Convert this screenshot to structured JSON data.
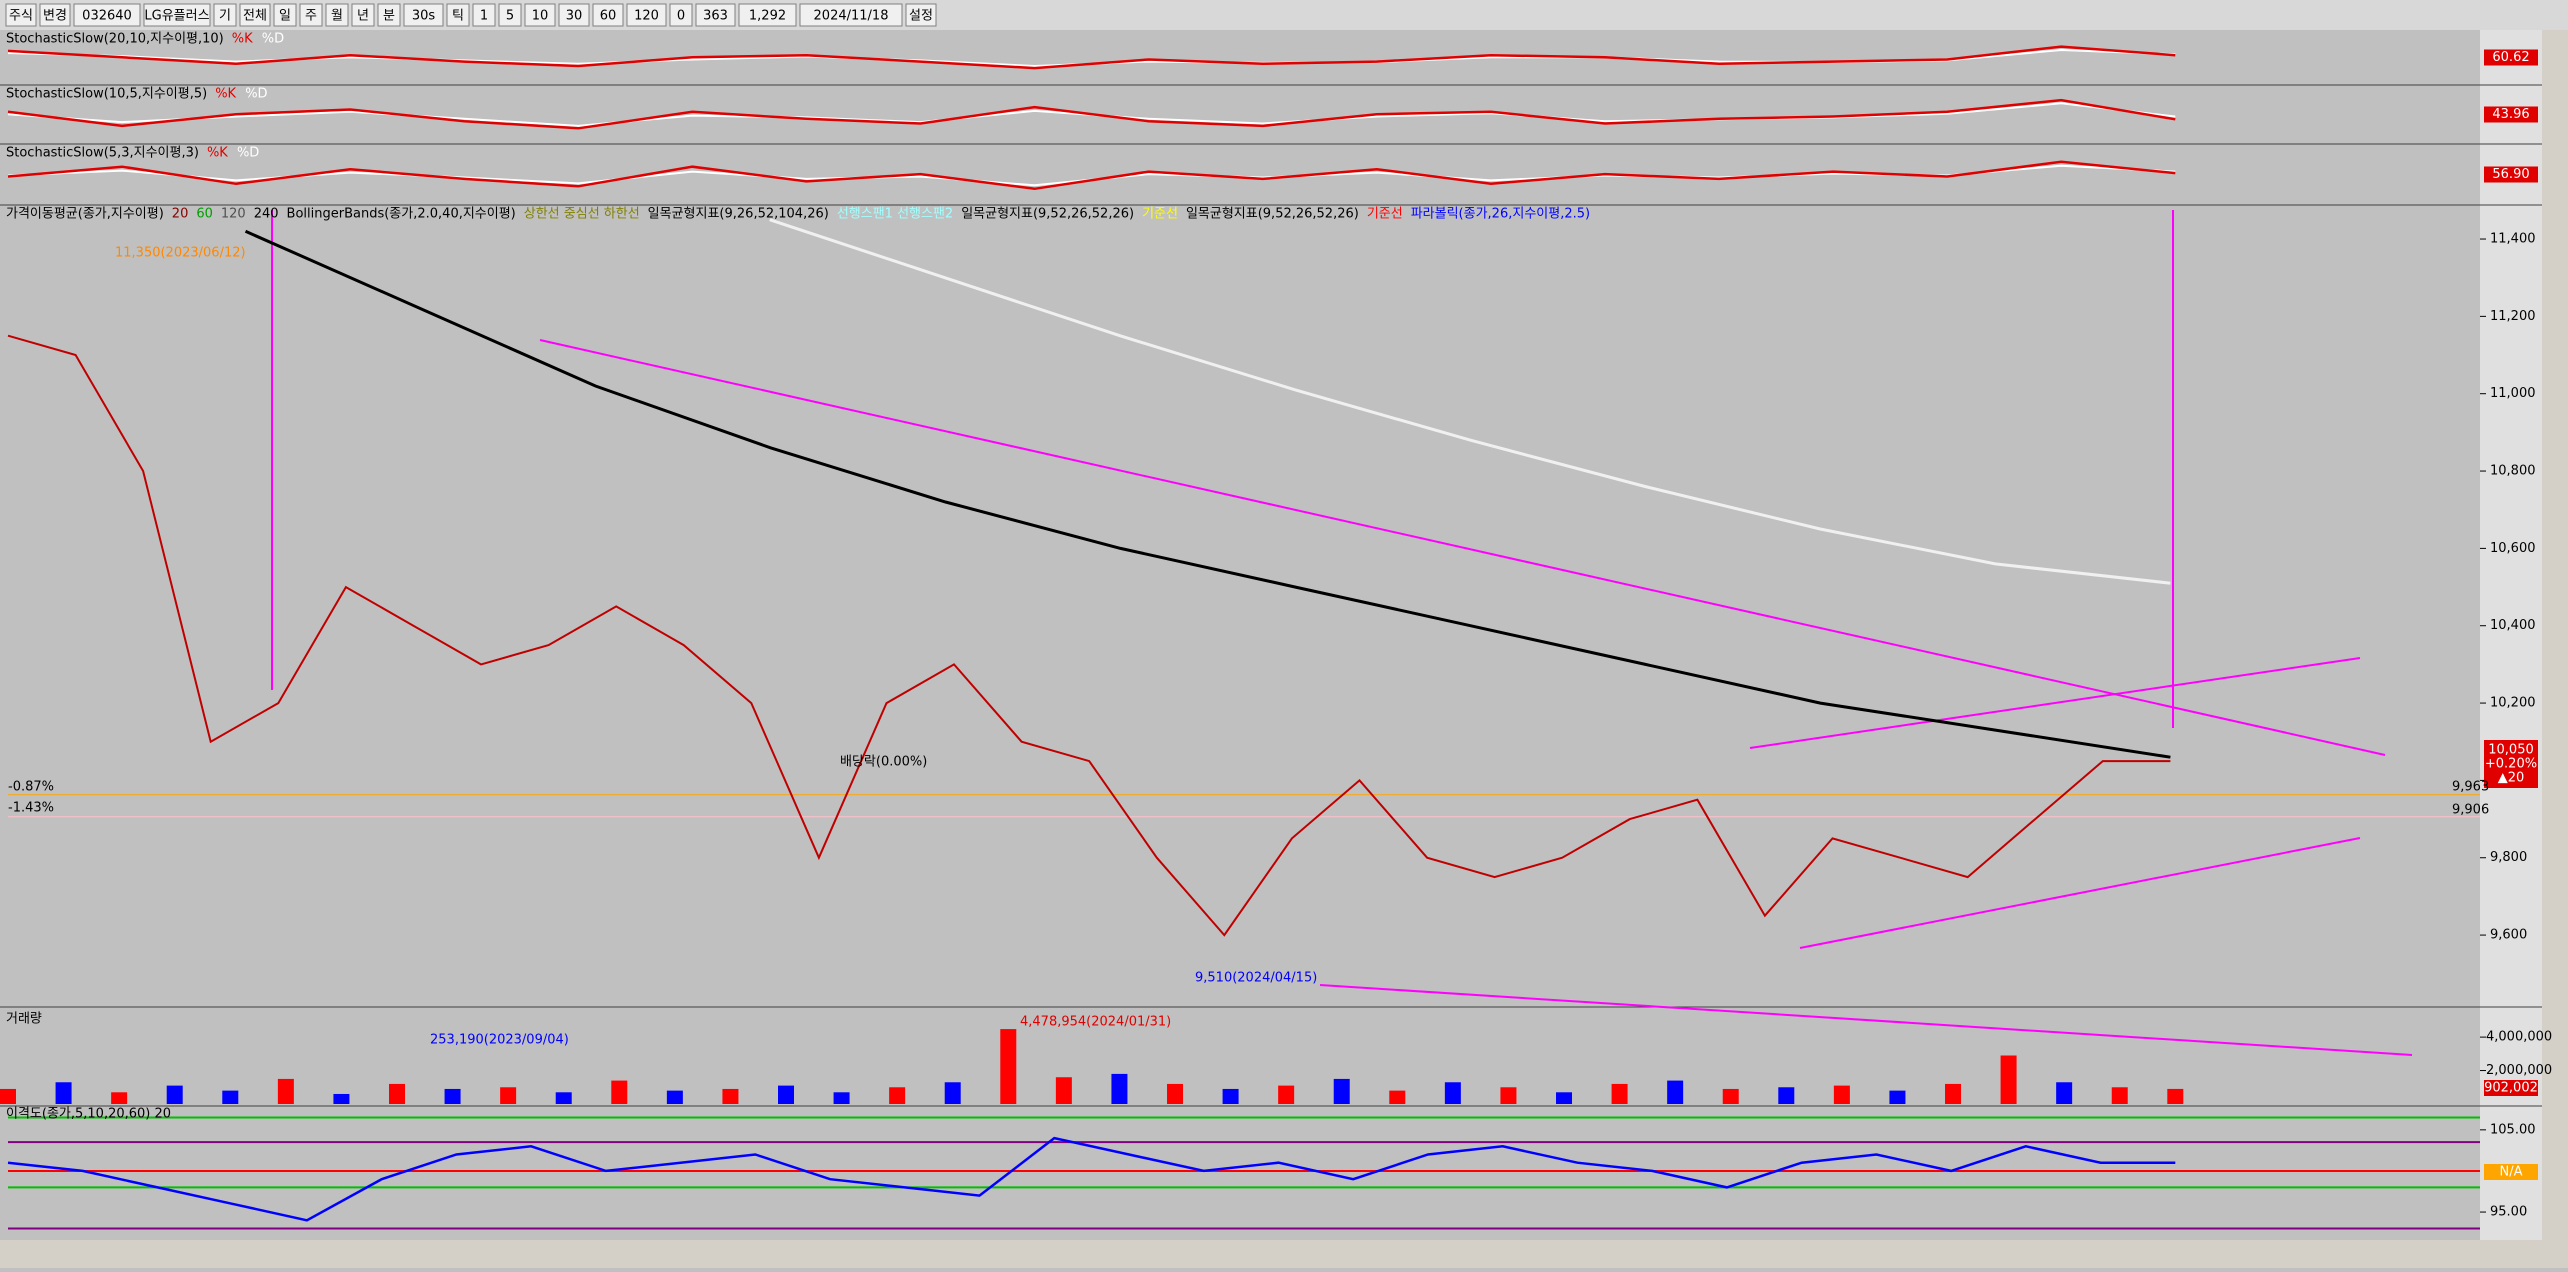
{
  "toolbar": {
    "items": [
      "주식",
      "변경",
      "032640",
      "LG유플러스",
      "기",
      "전체",
      "일",
      "주",
      "월",
      "년",
      "분",
      "30s",
      "틱",
      "1",
      "5",
      "10",
      "30",
      "60",
      "120",
      "0",
      "363",
      "1,292",
      "2024/11/18",
      "설정"
    ]
  },
  "stoch_panels": [
    {
      "label": "StochasticSlow(20,10,지수이평,10)",
      "k": "%K",
      "d": "%D",
      "value_label": "60.62",
      "ylim": [
        0,
        100
      ],
      "k_values": [
        70,
        55,
        40,
        60,
        45,
        35,
        55,
        60,
        45,
        30,
        50,
        40,
        45,
        60,
        55,
        40,
        45,
        50,
        80,
        60
      ],
      "d_values": [
        65,
        58,
        45,
        55,
        48,
        40,
        50,
        57,
        48,
        35,
        45,
        42,
        44,
        55,
        55,
        45,
        44,
        48,
        72,
        62
      ]
    },
    {
      "label": "StochasticSlow(10,5,지수이평,5)",
      "k": "%K",
      "d": "%D",
      "value_label": "43.96",
      "ylim": [
        0,
        100
      ],
      "k_values": [
        60,
        30,
        55,
        65,
        40,
        25,
        60,
        45,
        35,
        70,
        40,
        30,
        55,
        60,
        35,
        45,
        50,
        60,
        85,
        44
      ],
      "d_values": [
        55,
        38,
        50,
        60,
        45,
        30,
        52,
        48,
        38,
        62,
        45,
        35,
        50,
        57,
        40,
        44,
        48,
        56,
        78,
        50
      ]
    },
    {
      "label": "StochasticSlow(5,3,지수이평,3)",
      "k": "%K",
      "d": "%D",
      "value_label": "56.90",
      "ylim": [
        0,
        100
      ],
      "k_values": [
        50,
        70,
        35,
        65,
        45,
        30,
        70,
        40,
        55,
        25,
        60,
        45,
        65,
        35,
        55,
        45,
        60,
        50,
        80,
        57
      ],
      "d_values": [
        52,
        62,
        42,
        58,
        48,
        36,
        60,
        45,
        50,
        32,
        55,
        48,
        58,
        42,
        52,
        48,
        56,
        52,
        72,
        60
      ]
    }
  ],
  "main": {
    "legend": [
      {
        "text": "가격이동평균(종가,지수이평)",
        "color": "#000000"
      },
      {
        "text": "20",
        "color": "#8b0000"
      },
      {
        "text": "60",
        "color": "#00a000"
      },
      {
        "text": "120",
        "color": "#505050"
      },
      {
        "text": "240",
        "color": "#000000"
      },
      {
        "text": "BollingerBands(종가,2.0,40,지수이평)",
        "color": "#000000"
      },
      {
        "text": "상한선 중심선 하한선",
        "color": "#808000"
      },
      {
        "text": "일목균형지표(9,26,52,104,26)",
        "color": "#000000"
      },
      {
        "text": "선행스팬1 선행스팬2",
        "color": "#a0ffff"
      },
      {
        "text": "일목균형지표(9,52,26,52,26)",
        "color": "#000000"
      },
      {
        "text": "기준선",
        "color": "#ffff00"
      },
      {
        "text": "일목균형지표(9,52,26,52,26)",
        "color": "#000000"
      },
      {
        "text": "기준선",
        "color": "#ff0000"
      },
      {
        "text": "파라볼릭(종가,26,지수이평,2.5)",
        "color": "#0000ff"
      }
    ],
    "ylim": [
      9414,
      11488
    ],
    "yticks": [
      {
        "value": 9600,
        "label": "9,600"
      },
      {
        "value": 9800,
        "label": "9,800"
      },
      {
        "value": 10000,
        "label": "10,000"
      },
      {
        "value": 10200,
        "label": "10,200"
      },
      {
        "value": 10400,
        "label": "10,400"
      },
      {
        "value": 10600,
        "label": "10,600"
      },
      {
        "value": 10800,
        "label": "10,800"
      },
      {
        "value": 11000,
        "label": "11,000"
      },
      {
        "value": 11200,
        "label": "11,200"
      },
      {
        "value": 11400,
        "label": "11,400"
      }
    ],
    "close": [
      11150,
      11100,
      10800,
      10100,
      10200,
      10500,
      10400,
      10300,
      10350,
      10450,
      10350,
      10200,
      9800,
      10200,
      10300,
      10100,
      10050,
      9800,
      9600,
      9850,
      10000,
      9800,
      9750,
      9800,
      9900,
      9950,
      9650,
      9850,
      9800,
      9750,
      9900,
      10050,
      10050
    ],
    "ma240": [
      11420,
      11220,
      11020,
      10860,
      10720,
      10600,
      10500,
      10400,
      10300,
      10200,
      10130,
      10060
    ],
    "ma_white": [
      11450,
      11300,
      11150,
      11010,
      10880,
      10760,
      10650,
      10560,
      10510
    ],
    "annotations": [
      "11,350(2023/06/12)",
      "9,510(2024/04/15)",
      "배당락(0.00%)",
      "-0.87%",
      "-1.43%"
    ],
    "price_tag": [
      "10,050",
      "+0.20%",
      "▲20"
    ],
    "level_tags": [
      "9,963",
      "9,906"
    ]
  },
  "volume": {
    "label": "거래량",
    "ylim": [
      0,
      5800000
    ],
    "yticks": [
      {
        "value": 2000000,
        "label": "2,000,000"
      },
      {
        "value": 4000000,
        "label": "4,000,000"
      }
    ],
    "values": [
      900000,
      1300000,
      700000,
      1100000,
      800000,
      1500000,
      600000,
      1200000,
      900000,
      1000000,
      700000,
      1400000,
      800000,
      900000,
      1100000,
      700000,
      1000000,
      1300000,
      4478954,
      1600000,
      1800000,
      1200000,
      900000,
      1100000,
      1500000,
      800000,
      1300000,
      1000000,
      700000,
      1200000,
      1400000,
      900000,
      1000000,
      1100000,
      800000,
      1200000,
      2900000,
      1300000,
      1000000,
      902002
    ],
    "colors": [
      "#ff0000",
      "#0000ff",
      "#ff0000",
      "#0000ff",
      "#0000ff",
      "#ff0000",
      "#0000ff",
      "#ff0000",
      "#0000ff",
      "#ff0000",
      "#0000ff",
      "#ff0000",
      "#0000ff",
      "#ff0000",
      "#0000ff",
      "#0000ff",
      "#ff0000",
      "#0000ff",
      "#ff0000",
      "#ff0000",
      "#0000ff",
      "#ff0000",
      "#0000ff",
      "#ff0000",
      "#0000ff",
      "#ff0000",
      "#0000ff",
      "#ff0000",
      "#0000ff",
      "#ff0000",
      "#0000ff",
      "#ff0000",
      "#0000ff",
      "#ff0000",
      "#0000ff",
      "#ff0000",
      "#ff0000",
      "#0000ff",
      "#ff0000",
      "#ff0000"
    ],
    "annotations": [
      "4,478,954(2024/01/31)",
      "253,190(2023/09/04)"
    ],
    "current": "902,002"
  },
  "disparity": {
    "label": "이격도(종가,5,10,20,60) 20",
    "ylim": [
      91.6,
      107.9
    ],
    "yticks": [
      {
        "value": 95,
        "label": "95.00"
      },
      {
        "value": 105,
        "label": "105.00"
      }
    ],
    "values": [
      101,
      100,
      98,
      96,
      94,
      99,
      102,
      103,
      100,
      101,
      102,
      99,
      98,
      97,
      104,
      102,
      100,
      101,
      99,
      102,
      103,
      101,
      100,
      98,
      101,
      102,
      100,
      103,
      101,
      101
    ],
    "current": "N/A"
  }
}
